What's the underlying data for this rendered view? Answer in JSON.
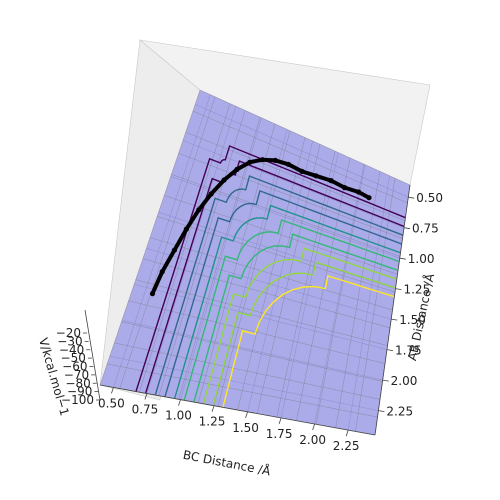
{
  "chart_data": {
    "type": "surface",
    "x_axis": {
      "label": "BC Distance /Å",
      "ticks": [
        "0.50",
        "0.75",
        "1.00",
        "1.25",
        "1.50",
        "1.75",
        "2.00",
        "2.25"
      ],
      "range": [
        0.4,
        2.45
      ]
    },
    "y_axis": {
      "label": "AB Distance /Å",
      "ticks": [
        "0.50",
        "0.75",
        "1.00",
        "1.25",
        "1.50",
        "1.75",
        "2.00",
        "2.25"
      ],
      "range": [
        0.4,
        2.45
      ]
    },
    "z_axis": {
      "label": "V/kcal.mol−1",
      "ticks": [
        "−20",
        "−30",
        "−40",
        "−50",
        "−60",
        "−70",
        "−80",
        "−90",
        "−100"
      ],
      "range": [
        -105,
        -15
      ]
    },
    "surface_colormap_bands": [
      "#0000cc",
      "#00aaff",
      "#00ffaa",
      "#aaff00",
      "#ffaa00",
      "#ff0000"
    ],
    "contour_colormap": [
      "#440154",
      "#31688e",
      "#21918c",
      "#35b779",
      "#90d743",
      "#fde725"
    ],
    "trajectory": {
      "x": [
        0.56,
        0.58,
        0.62,
        0.66,
        0.71,
        0.77,
        0.84,
        0.92,
        1.01,
        1.11,
        1.22,
        1.34,
        1.47,
        1.6,
        1.74,
        1.87,
        2.0,
        2.1
      ],
      "y": [
        1.78,
        1.62,
        1.46,
        1.3,
        1.15,
        1.02,
        0.9,
        0.8,
        0.72,
        0.67,
        0.64,
        0.63,
        0.64,
        0.63,
        0.62,
        0.63,
        0.62,
        0.63
      ]
    },
    "grid": true
  }
}
